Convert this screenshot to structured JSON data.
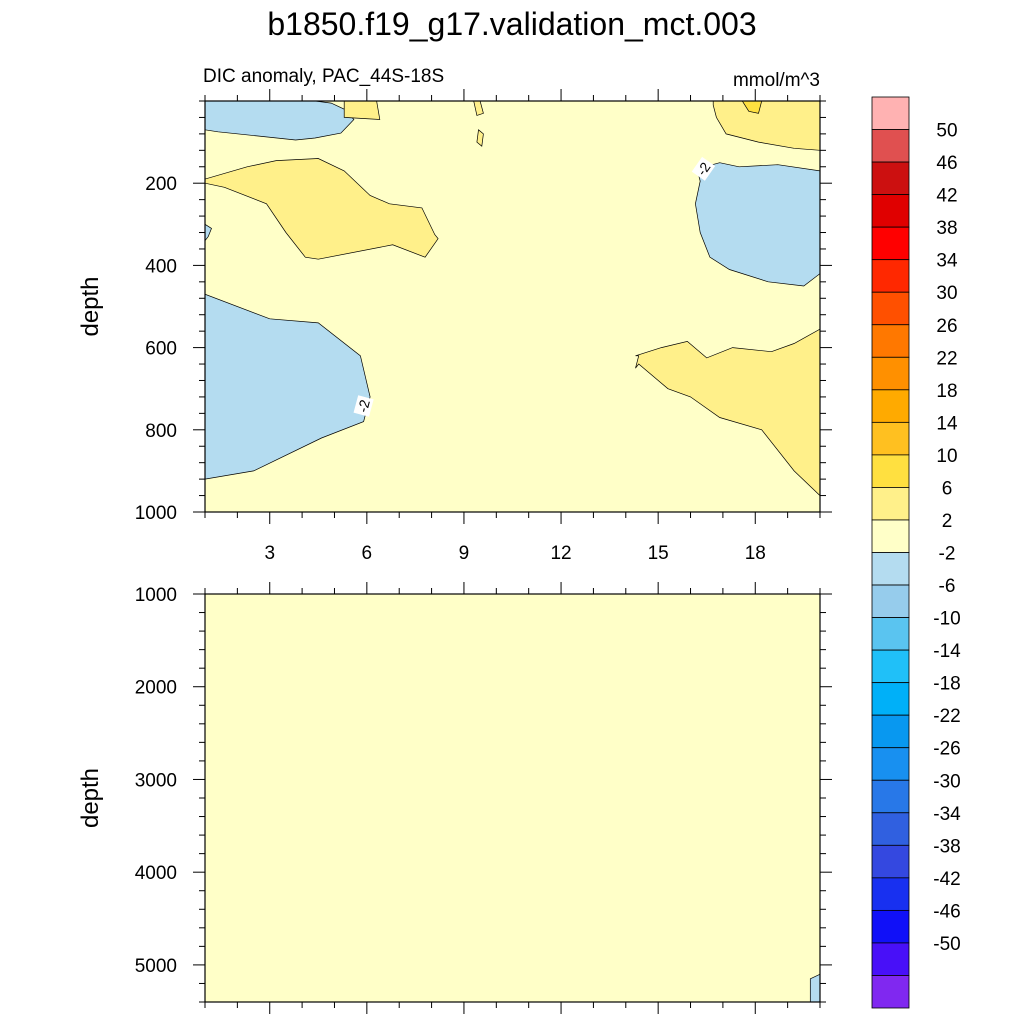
{
  "title": "b1850.f19_g17.validation_mct.003",
  "subtitle_left": "DIC anomaly, PAC_44S-18S",
  "subtitle_right": "mmol/m^3",
  "chart_data": [
    {
      "type": "heatmap",
      "panel": "upper",
      "ylabel": "depth",
      "xlim": [
        1,
        20
      ],
      "ylim": [
        1000,
        0
      ],
      "x_ticks": [
        3,
        6,
        9,
        12,
        15,
        18
      ],
      "y_ticks": [
        200,
        400,
        600,
        800,
        1000
      ],
      "background_level": "-2 to 2",
      "regions": [
        {
          "level": "-6 to -2",
          "x": [
            1,
            2.2,
            2.9,
            4.1,
            4.4,
            4.9,
            5.3,
            5.6,
            5.2,
            4.4,
            3.8,
            2.6,
            1.4,
            1
          ],
          "y": [
            0,
            0,
            0,
            0,
            0,
            5,
            20,
            45,
            78,
            90,
            95,
            85,
            75,
            70
          ]
        },
        {
          "level": "-6 to -2",
          "x": [
            1,
            1.2,
            1.1,
            1
          ],
          "y": [
            300,
            310,
            330,
            340
          ]
        },
        {
          "level": "-6 to -2",
          "x": [
            16.2,
            16.9,
            17.5,
            18.7,
            20,
            20,
            19.5,
            18.4,
            17.2,
            16.6,
            16.3,
            16.15,
            16.3
          ],
          "y": [
            165,
            150,
            160,
            155,
            170,
            420,
            450,
            440,
            410,
            380,
            320,
            250,
            195
          ]
        },
        {
          "level": "-6 to -2",
          "x": [
            1,
            3,
            4.5,
            5.8,
            6.1,
            5.9,
            4.6,
            2.5,
            1
          ],
          "y": [
            470,
            530,
            540,
            620,
            720,
            780,
            820,
            900,
            920
          ]
        },
        {
          "level": "2 to 6",
          "x": [
            1,
            2.3,
            3.2,
            4.5,
            5.3,
            6.1,
            6.7,
            7.7,
            8.1,
            8.2,
            7.8,
            6.8,
            4.5,
            4.1,
            3.5,
            2.9,
            1.6,
            1
          ],
          "y": [
            190,
            160,
            145,
            140,
            170,
            230,
            250,
            260,
            325,
            335,
            380,
            350,
            385,
            380,
            320,
            250,
            210,
            200
          ]
        },
        {
          "level": "2 to 6",
          "x": [
            5.3,
            5.8,
            6.3,
            6.4,
            5.3
          ],
          "y": [
            0,
            0,
            0,
            45,
            40
          ]
        },
        {
          "level": "2 to 6",
          "x": [
            9.3,
            9.5,
            9.6,
            9.4
          ],
          "y": [
            0,
            0,
            30,
            35
          ]
        },
        {
          "level": "2 to 6",
          "x": [
            9.45,
            9.6,
            9.55,
            9.4
          ],
          "y": [
            70,
            80,
            110,
            100
          ]
        },
        {
          "level": "2 to 6",
          "x": [
            16.7,
            17.8,
            19.1,
            20,
            20,
            19.2,
            18.1,
            17.1,
            16.8,
            16.7
          ],
          "y": [
            0,
            0,
            0,
            0,
            120,
            115,
            100,
            80,
            40,
            10
          ]
        },
        {
          "level": "6 to 10",
          "x": [
            17.6,
            18.2,
            18.1,
            17.8
          ],
          "y": [
            0,
            0,
            30,
            25
          ]
        },
        {
          "level": "2 to 6",
          "x": [
            14.3,
            15.1,
            15.9,
            16.5,
            17.3,
            18.5,
            19.2,
            20,
            20,
            19.2,
            18.2,
            16.9,
            16.0,
            15.3,
            14.4,
            14.3,
            14.4
          ],
          "y": [
            620,
            600,
            585,
            625,
            600,
            610,
            590,
            555,
            960,
            900,
            800,
            770,
            720,
            700,
            640,
            650,
            620
          ]
        }
      ],
      "contour_labels": [
        {
          "text": "-2",
          "x": 16.4,
          "y": 165,
          "angle": -55
        },
        {
          "text": "-2",
          "x": 5.9,
          "y": 742,
          "angle": -75
        }
      ]
    },
    {
      "type": "heatmap",
      "panel": "lower",
      "ylabel": "depth",
      "xlim": [
        1,
        20
      ],
      "ylim": [
        5400,
        1000
      ],
      "x_ticks": [
        3,
        6,
        9,
        12,
        15,
        18
      ],
      "y_ticks": [
        1000,
        2000,
        3000,
        4000,
        5000
      ],
      "background_level": "-2 to 2",
      "regions": [
        {
          "level": "-6 to -2",
          "x": [
            19.7,
            20,
            20,
            19.7
          ],
          "y": [
            5150,
            5100,
            5400,
            5400
          ]
        }
      ]
    }
  ],
  "colorbar": {
    "labels": [
      "50",
      "46",
      "42",
      "38",
      "34",
      "30",
      "26",
      "22",
      "18",
      "14",
      "10",
      "6",
      "2",
      "-2",
      "-6",
      "-10",
      "-14",
      "-18",
      "-22",
      "-26",
      "-30",
      "-34",
      "-38",
      "-42",
      "-46",
      "-50"
    ],
    "colors": [
      "#ffb2b2",
      "#e05050",
      "#cc1010",
      "#e00000",
      "#ff0000",
      "#ff2800",
      "#ff5000",
      "#ff7800",
      "#ff9000",
      "#ffaa00",
      "#ffc020",
      "#ffe040",
      "#fff08a",
      "#ffffc8",
      "#b4dcf0",
      "#96ccec",
      "#5ac4f0",
      "#20c0f8",
      "#00b0f8",
      "#0898f0",
      "#1890f0",
      "#2878e8",
      "#3060e0",
      "#3448e0",
      "#1830f0",
      "#1010f8",
      "#4810f8",
      "#8028f0"
    ]
  },
  "level_colors": {
    "-6 to -2": "#b4dcf0",
    "-2 to 2": "#ffffc8",
    "2 to 6": "#fff08a",
    "6 to 10": "#ffe040"
  }
}
